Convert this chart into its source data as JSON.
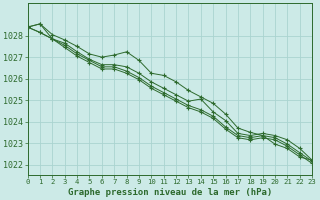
{
  "title": "Graphe pression niveau de la mer (hPa)",
  "background_color": "#cceae7",
  "grid_color": "#aad4d0",
  "line_color": "#2d6a2d",
  "x_min": 0,
  "x_max": 23,
  "y_min": 1021.5,
  "y_max": 1029.5,
  "y_ticks": [
    1022,
    1023,
    1024,
    1025,
    1026,
    1027,
    1028
  ],
  "series": [
    [
      1028.4,
      1028.55,
      1028.05,
      1027.8,
      1027.5,
      1027.15,
      1027.0,
      1027.1,
      1027.25,
      1026.85,
      1026.25,
      1026.15,
      1025.85,
      1025.45,
      1025.15,
      1024.85,
      1024.35,
      1023.7,
      1023.5,
      1023.35,
      1022.95,
      1022.75,
      1022.35,
      1022.2
    ],
    [
      1028.4,
      1028.55,
      1027.85,
      1027.65,
      1027.25,
      1026.9,
      1026.65,
      1026.65,
      1026.55,
      1026.25,
      1025.85,
      1025.55,
      1025.25,
      1024.95,
      1025.05,
      1024.45,
      1024.05,
      1023.45,
      1023.35,
      1023.45,
      1023.35,
      1023.15,
      1022.75,
      1022.2
    ],
    [
      1028.4,
      1028.15,
      1027.85,
      1027.55,
      1027.15,
      1026.85,
      1026.55,
      1026.55,
      1026.35,
      1026.05,
      1025.65,
      1025.35,
      1025.05,
      1024.75,
      1024.55,
      1024.25,
      1023.75,
      1023.35,
      1023.25,
      1023.35,
      1023.25,
      1022.95,
      1022.55,
      1022.15
    ],
    [
      1028.4,
      1028.15,
      1027.85,
      1027.45,
      1027.05,
      1026.75,
      1026.45,
      1026.45,
      1026.25,
      1025.95,
      1025.55,
      1025.25,
      1024.95,
      1024.65,
      1024.45,
      1024.15,
      1023.65,
      1023.25,
      1023.15,
      1023.25,
      1023.15,
      1022.85,
      1022.45,
      1022.05
    ]
  ],
  "xlabel_fontsize": 6.5,
  "ytick_fontsize": 6.0,
  "xtick_fontsize": 5.2
}
